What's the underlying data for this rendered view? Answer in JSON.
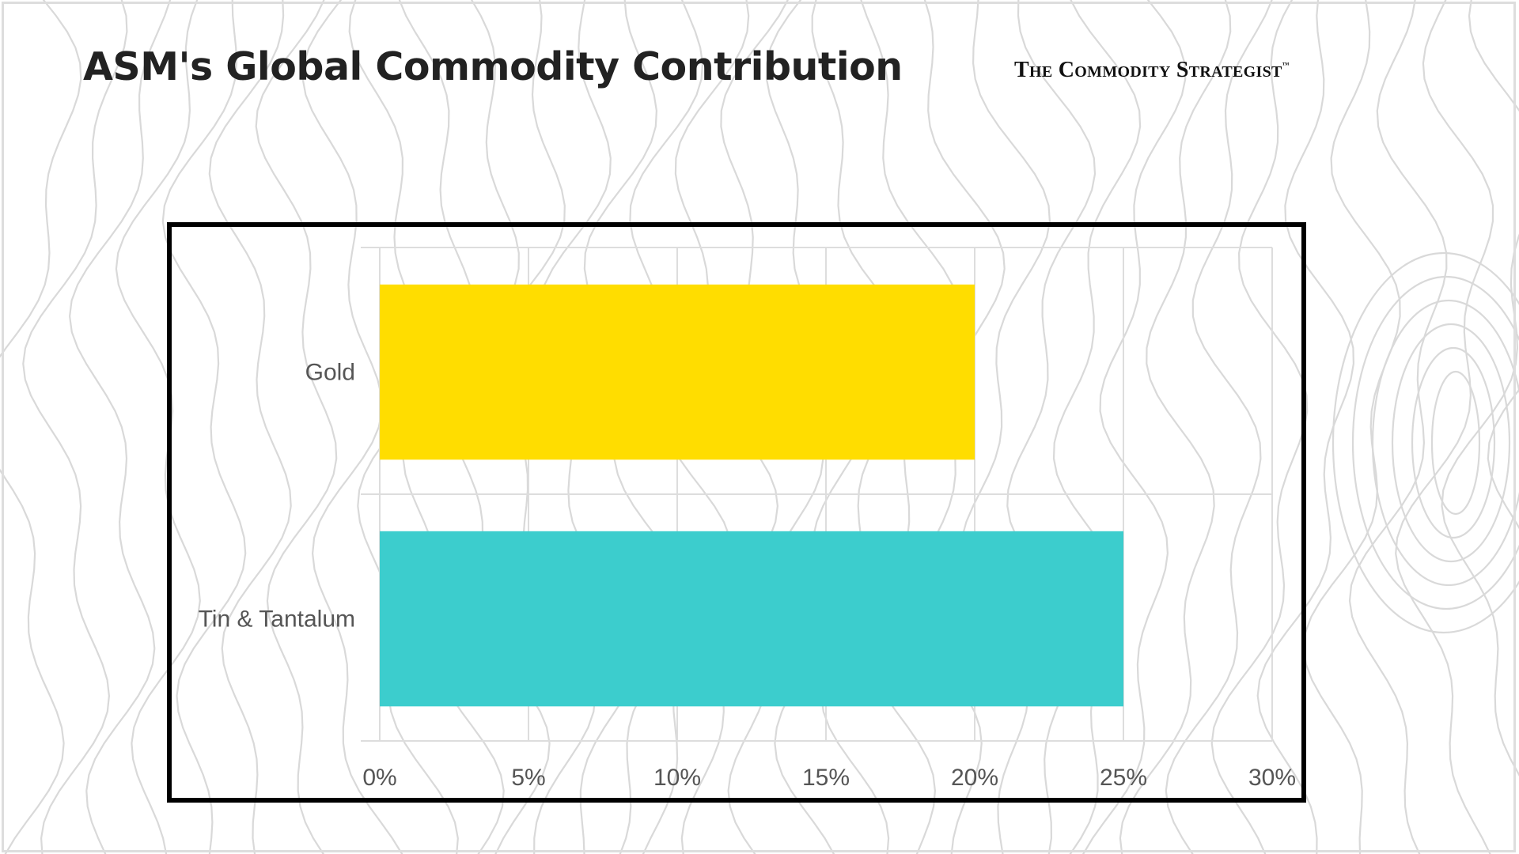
{
  "slide": {
    "title": "ASM's Global Commodity Contribution",
    "brand_main": "The Commodity Strategist",
    "brand_tm": "™"
  },
  "colors": {
    "gold_bar": "#FFDD00",
    "tin_bar": "#3CCDCD",
    "grid": "#dddddd",
    "contour": "#d9d9d9"
  },
  "chart_data": {
    "type": "bar",
    "orientation": "horizontal",
    "title": "",
    "xlabel": "",
    "ylabel": "",
    "categories": [
      "Gold",
      "Tin & Tantalum"
    ],
    "values": [
      20,
      25
    ],
    "value_unit": "%",
    "xlim": [
      0,
      30
    ],
    "xticks": [
      0,
      5,
      10,
      15,
      20,
      25,
      30
    ],
    "xtick_labels": [
      "0%",
      "5%",
      "10%",
      "15%",
      "20%",
      "25%",
      "30%"
    ],
    "grid": true,
    "legend": "none"
  }
}
